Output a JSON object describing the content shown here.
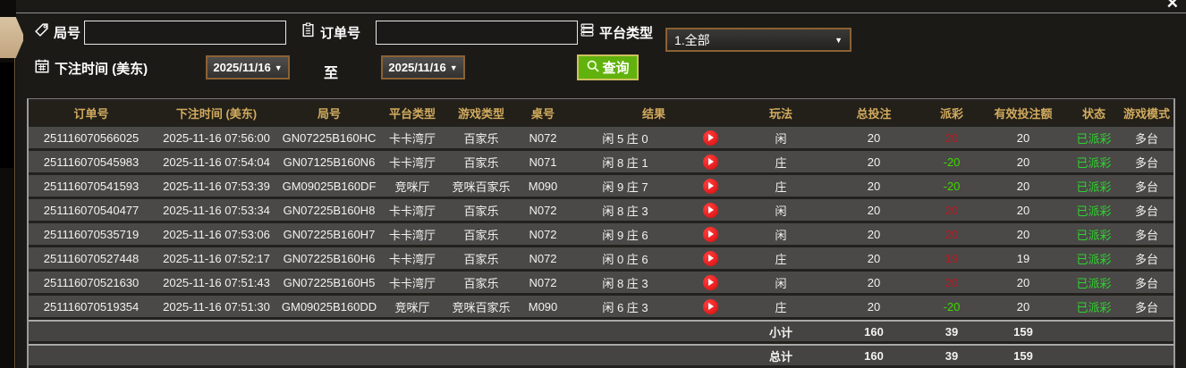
{
  "window": {
    "close_label": "✕"
  },
  "filters": {
    "round": {
      "label": "局号",
      "value": ""
    },
    "order": {
      "label": "订单号",
      "value": ""
    },
    "platform": {
      "label": "平台类型",
      "value": "1.全部",
      "arrow": "▼"
    },
    "bet_time": {
      "label": "下注时间 (美东)",
      "from": "2025/11/16",
      "to_label": "至",
      "to": "2025/11/16",
      "arrow": "▼"
    },
    "query": {
      "label": "查询"
    }
  },
  "table": {
    "columns": [
      "订单号",
      "下注时间 (美东)",
      "局号",
      "平台类型",
      "游戏类型",
      "桌号",
      "结果",
      "玩法",
      "总投注",
      "派彩",
      "有效投注额",
      "状态",
      "游戏模式"
    ],
    "rows": [
      {
        "order": "251116070566025",
        "time": "2025-11-16 07:56:00",
        "round": "GN07225B160HC",
        "platform": "卡卡湾厅",
        "game": "百家乐",
        "table_no": "N072",
        "result": "闲 5 庄 0",
        "play": "闲",
        "total_bet": "20",
        "payout": "20",
        "payout_color": "red",
        "valid_bet": "20",
        "status": "已派彩",
        "mode": "多台"
      },
      {
        "order": "251116070545983",
        "time": "2025-11-16 07:54:04",
        "round": "GN07125B160N6",
        "platform": "卡卡湾厅",
        "game": "百家乐",
        "table_no": "N071",
        "result": "闲 8 庄 1",
        "play": "庄",
        "total_bet": "20",
        "payout": "-20",
        "payout_color": "green",
        "valid_bet": "20",
        "status": "已派彩",
        "mode": "多台"
      },
      {
        "order": "251116070541593",
        "time": "2025-11-16 07:53:39",
        "round": "GM09025B160DF",
        "platform": "竞咪厅",
        "game": "竞咪百家乐",
        "table_no": "M090",
        "result": "闲 9 庄 7",
        "play": "庄",
        "total_bet": "20",
        "payout": "-20",
        "payout_color": "green",
        "valid_bet": "20",
        "status": "已派彩",
        "mode": "多台"
      },
      {
        "order": "251116070540477",
        "time": "2025-11-16 07:53:34",
        "round": "GN07225B160H8",
        "platform": "卡卡湾厅",
        "game": "百家乐",
        "table_no": "N072",
        "result": "闲 8 庄 3",
        "play": "闲",
        "total_bet": "20",
        "payout": "20",
        "payout_color": "red",
        "valid_bet": "20",
        "status": "已派彩",
        "mode": "多台"
      },
      {
        "order": "251116070535719",
        "time": "2025-11-16 07:53:06",
        "round": "GN07225B160H7",
        "platform": "卡卡湾厅",
        "game": "百家乐",
        "table_no": "N072",
        "result": "闲 9 庄 6",
        "play": "闲",
        "total_bet": "20",
        "payout": "20",
        "payout_color": "red",
        "valid_bet": "20",
        "status": "已派彩",
        "mode": "多台"
      },
      {
        "order": "251116070527448",
        "time": "2025-11-16 07:52:17",
        "round": "GN07225B160H6",
        "platform": "卡卡湾厅",
        "game": "百家乐",
        "table_no": "N072",
        "result": "闲 0 庄 6",
        "play": "庄",
        "total_bet": "20",
        "payout": "19",
        "payout_color": "red",
        "valid_bet": "19",
        "status": "已派彩",
        "mode": "多台"
      },
      {
        "order": "251116070521630",
        "time": "2025-11-16 07:51:43",
        "round": "GN07225B160H5",
        "platform": "卡卡湾厅",
        "game": "百家乐",
        "table_no": "N072",
        "result": "闲 8 庄 3",
        "play": "闲",
        "total_bet": "20",
        "payout": "20",
        "payout_color": "red",
        "valid_bet": "20",
        "status": "已派彩",
        "mode": "多台"
      },
      {
        "order": "251116070519354",
        "time": "2025-11-16 07:51:30",
        "round": "GM09025B160DD",
        "platform": "竞咪厅",
        "game": "竞咪百家乐",
        "table_no": "M090",
        "result": "闲 6 庄 3",
        "play": "庄",
        "total_bet": "20",
        "payout": "-20",
        "payout_color": "green",
        "valid_bet": "20",
        "status": "已派彩",
        "mode": "多台"
      }
    ],
    "subtotal": {
      "label": "小计",
      "total_bet": "160",
      "payout": "39",
      "valid_bet": "159"
    },
    "grand_total": {
      "label": "总计",
      "total_bet": "160",
      "payout": "39",
      "valid_bet": "159"
    }
  },
  "colors": {
    "header_text_gold": "#d2ab5e",
    "win_red": "#b01e28",
    "loss_green": "#3fd800",
    "status_green": "#2ed32e",
    "summary_yellow": "#e4e42e",
    "accent_border_brown": "#8a6134",
    "query_button_green": "#62b20d",
    "tab_tan": "#ccb28e",
    "row_gray": "#4a4947",
    "panel_dark": "#1c1a17"
  }
}
